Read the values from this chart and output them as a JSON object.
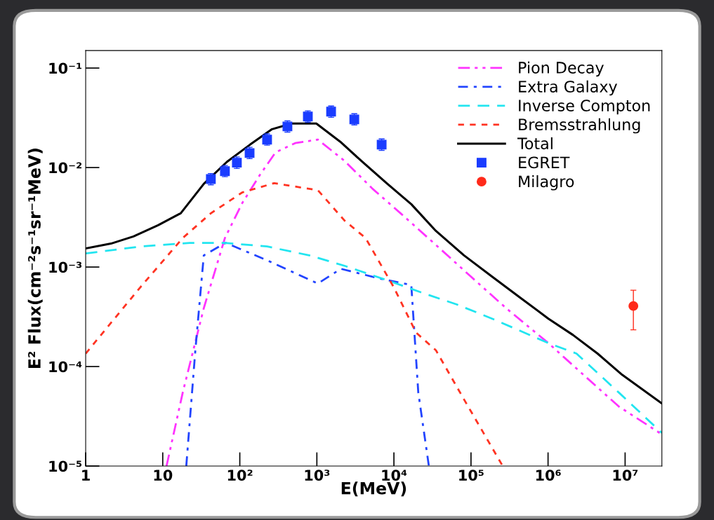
{
  "chart_data": {
    "type": "line",
    "xlabel": "E(MeV)",
    "ylabel": "E² Flux(cm⁻²s⁻¹sr⁻¹MeV)",
    "log": "xy",
    "xlim": [
      1,
      30000000
    ],
    "ylim": [
      1e-05,
      0.15
    ],
    "xticks": [
      1,
      10,
      {
        "value": 100,
        "label": "10²"
      },
      {
        "value": 1000,
        "label": "10³"
      },
      {
        "value": 10000,
        "label": "10⁴"
      },
      {
        "value": 100000,
        "label": "10⁵"
      },
      {
        "value": 1000000,
        "label": "10⁶"
      },
      {
        "value": 10000000,
        "label": "10⁷"
      }
    ],
    "yticks": [
      {
        "value": 1e-05,
        "label": "10⁻⁵"
      },
      {
        "value": 0.0001,
        "label": "10⁻⁴"
      },
      {
        "value": 0.001,
        "label": "10⁻³"
      },
      {
        "value": 0.01,
        "label": "10⁻²"
      },
      {
        "value": 0.1,
        "label": "10⁻¹"
      }
    ],
    "grid": false,
    "legend": "top right",
    "series": [
      {
        "name": "Pion Decay",
        "type": "line",
        "color": "#ff33ff",
        "line_style": "dashdotdot",
        "x": [
          11.2,
          18.2,
          34.1,
          64.1,
          108,
          183,
          291,
          524,
          1030,
          2280,
          5280,
          12200,
          35000,
          100000,
          286000,
          1010000,
          2880000,
          8240000,
          30000000
        ],
        "values": [
          1e-05,
          5.5e-05,
          0.000386,
          0.00196,
          0.00442,
          0.00847,
          0.0142,
          0.0176,
          0.0191,
          0.0117,
          0.00612,
          0.00347,
          0.00167,
          0.0008,
          0.000386,
          0.000172,
          8.26e-05,
          3.98e-05,
          2.08e-05
        ]
      },
      {
        "name": "Extra Galaxy",
        "type": "line",
        "color": "#2244ff",
        "line_style": "dashdot",
        "x": [
          20.2,
          26.5,
          34.1,
          65.4,
          226,
          1030,
          2050,
          6510,
          16800,
          20700,
          28400
        ],
        "values": [
          1e-05,
          0.000146,
          0.00131,
          0.00175,
          0.00117,
          0.000683,
          0.00096,
          0.000766,
          0.000661,
          5.5e-05,
          1e-05
        ]
      },
      {
        "name": "Inverse Compton",
        "type": "line",
        "color": "#22e5f0",
        "line_style": "dashed",
        "x": [
          1,
          5.15,
          22.4,
          64.1,
          226,
          797,
          2280,
          8040,
          23000,
          65700,
          188000,
          1010000,
          2340000,
          8240000,
          30000000
        ],
        "values": [
          0.00137,
          0.00161,
          0.00175,
          0.00175,
          0.00161,
          0.00131,
          0.00103,
          0.00074,
          0.000553,
          0.00042,
          0.000303,
          0.000172,
          0.000135,
          5.5e-05,
          2.15e-05
        ]
      },
      {
        "name": "Bremsstrahlung",
        "type": "line",
        "color": "#ff3322",
        "line_style": "dotted",
        "x": [
          1,
          5.15,
          18.2,
          42.1,
          108,
          279,
          1030,
          2280,
          4280,
          9910,
          19400,
          35000,
          81100,
          258000
        ],
        "values": [
          0.000135,
          0.00063,
          0.00196,
          0.00347,
          0.00563,
          0.00697,
          0.00592,
          0.00294,
          0.00196,
          0.00063,
          0.000219,
          0.000146,
          4.68e-05,
          1e-05
        ]
      },
      {
        "name": "Total",
        "type": "line",
        "color": "#000000",
        "line_style": "solid",
        "x": [
          1,
          2.13,
          4.17,
          8.7,
          17.1,
          34.1,
          68,
          136,
          262,
          471,
          984,
          2010,
          3850,
          8040,
          16800,
          35000,
          81100,
          188000,
          435000,
          1010000,
          2100000,
          4390000,
          9160000,
          30000000
        ],
        "values": [
          0.00154,
          0.00172,
          0.00203,
          0.00263,
          0.00347,
          0.00686,
          0.0114,
          0.017,
          0.0243,
          0.0277,
          0.0277,
          0.0182,
          0.0115,
          0.00697,
          0.00428,
          0.00231,
          0.00131,
          0.0008,
          0.000493,
          0.000303,
          0.000208,
          0.000135,
          8.26e-05,
          4.25e-05
        ]
      },
      {
        "name": "EGRET",
        "type": "scatter",
        "color": "#1a3cff",
        "marker": "square",
        "x": [
          42.1,
          64.1,
          91.6,
          134,
          226,
          415,
          764,
          1530,
          3060,
          6930
        ],
        "values": [
          0.00767,
          0.00919,
          0.0112,
          0.014,
          0.0191,
          0.0259,
          0.0326,
          0.0365,
          0.0305,
          0.017
        ],
        "errors": [
          [
            0.0067,
            0.0087
          ],
          [
            0.0081,
            0.0105
          ],
          [
            0.0098,
            0.0128
          ],
          [
            0.0123,
            0.016
          ],
          [
            0.0168,
            0.0218
          ],
          [
            0.0227,
            0.0295
          ],
          [
            0.0286,
            0.0372
          ],
          [
            0.032,
            0.0416
          ],
          [
            0.0268,
            0.0348
          ],
          [
            0.0149,
            0.0194
          ]
        ]
      },
      {
        "name": "Milagro",
        "type": "scatter",
        "color": "#ff2a1a",
        "marker": "circle",
        "x": [
          12800000
        ],
        "values": [
          0.000406
        ],
        "errors": [
          [
            0.000234,
            0.000585
          ]
        ]
      }
    ]
  }
}
